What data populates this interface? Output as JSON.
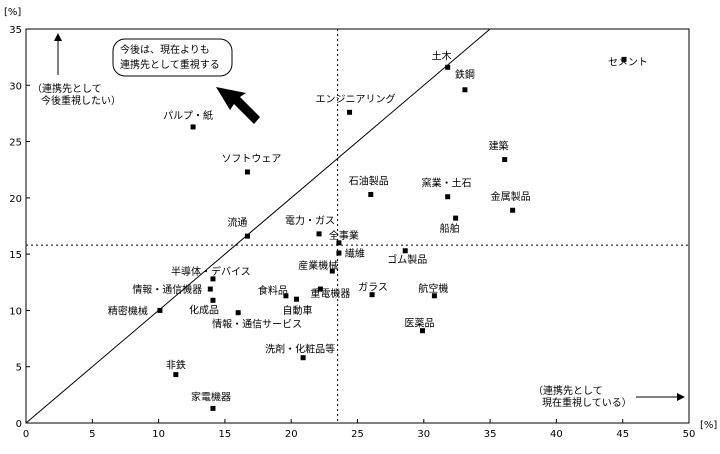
{
  "chart_data": {
    "type": "scatter",
    "xlabel": "",
    "ylabel": "",
    "x_unit": "[%]",
    "y_unit": "[%]",
    "xlim": [
      0,
      50
    ],
    "ylim": [
      0,
      35
    ],
    "x_ticks": [
      0,
      5,
      10,
      15,
      20,
      25,
      30,
      35,
      40,
      45,
      50
    ],
    "y_ticks": [
      0,
      5,
      10,
      15,
      20,
      25,
      30,
      35
    ],
    "grid": false,
    "reference_lines": {
      "vertical_x": 23.5,
      "horizontal_y": 15.8,
      "diagonal": "y = x"
    },
    "points": [
      {
        "label": "土木",
        "x": 31.8,
        "y": 31.6
      },
      {
        "label": "セメント",
        "x": 45.1,
        "y": 32.3
      },
      {
        "label": "鉄鋼",
        "x": 33.1,
        "y": 29.6
      },
      {
        "label": "エンジニアリング",
        "x": 24.4,
        "y": 27.6
      },
      {
        "label": "パルプ・紙",
        "x": 12.6,
        "y": 26.3
      },
      {
        "label": "建築",
        "x": 36.1,
        "y": 23.4
      },
      {
        "label": "ソフトウェア",
        "x": 16.7,
        "y": 22.3
      },
      {
        "label": "石油製品",
        "x": 26.0,
        "y": 20.3
      },
      {
        "label": "窯業・土石",
        "x": 31.8,
        "y": 20.1
      },
      {
        "label": "金属製品",
        "x": 36.7,
        "y": 18.9
      },
      {
        "label": "船舶",
        "x": 32.4,
        "y": 18.2
      },
      {
        "label": "流通",
        "x": 16.7,
        "y": 16.6
      },
      {
        "label": "電力・ガス",
        "x": 22.1,
        "y": 16.8
      },
      {
        "label": "全事業",
        "x": 23.6,
        "y": 16.0
      },
      {
        "label": "繊維",
        "x": 23.6,
        "y": 15.1
      },
      {
        "label": "ゴム製品",
        "x": 28.6,
        "y": 15.3
      },
      {
        "label": "半導体・デバイス",
        "x": 14.1,
        "y": 12.8
      },
      {
        "label": "産業機械",
        "x": 23.1,
        "y": 13.5
      },
      {
        "label": "情報・通信機器",
        "x": 13.9,
        "y": 11.9
      },
      {
        "label": "食料品",
        "x": 19.6,
        "y": 11.3
      },
      {
        "label": "ガラス",
        "x": 26.1,
        "y": 11.4
      },
      {
        "label": "航空機",
        "x": 30.8,
        "y": 11.3
      },
      {
        "label": "自動車",
        "x": 20.4,
        "y": 11.0
      },
      {
        "label": "重電機器",
        "x": 22.2,
        "y": 11.9
      },
      {
        "label": "化成品",
        "x": 14.1,
        "y": 10.9
      },
      {
        "label": "精密機械",
        "x": 10.1,
        "y": 10.0
      },
      {
        "label": "情報・通信サービス",
        "x": 16.0,
        "y": 9.8
      },
      {
        "label": "医薬品",
        "x": 29.9,
        "y": 8.2
      },
      {
        "label": "洗剤・化粧品等",
        "x": 20.9,
        "y": 5.8
      },
      {
        "label": "非鉄",
        "x": 11.3,
        "y": 4.3
      },
      {
        "label": "家電機器",
        "x": 14.1,
        "y": 1.3
      }
    ],
    "annotations": {
      "callout_lines": [
        "今後は、現在よりも",
        "連携先として重視する"
      ],
      "top_left_lines": [
        "（連携先として",
        "今後重視したい）"
      ],
      "bottom_right_lines": [
        "（連携先として",
        "現在重視している）"
      ]
    }
  }
}
